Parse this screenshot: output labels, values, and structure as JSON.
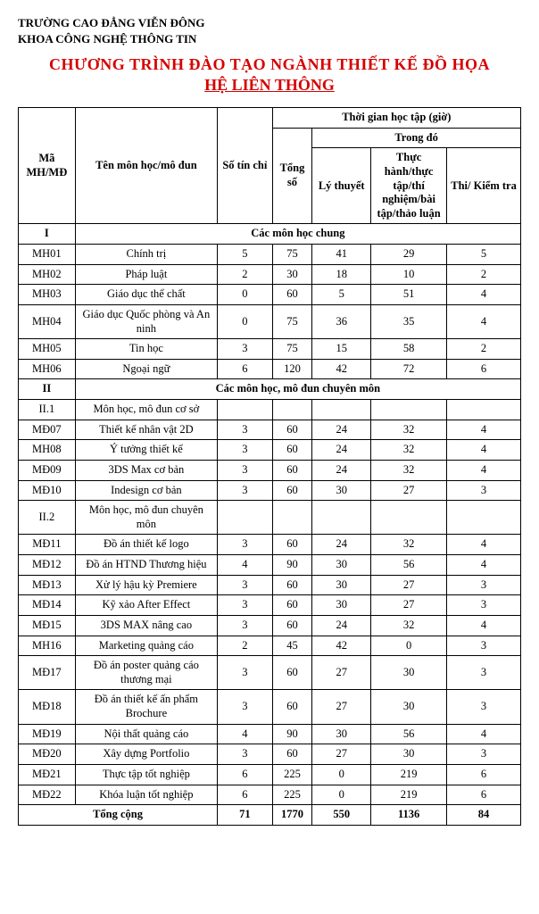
{
  "org1": "TRƯỜNG CAO ĐẲNG VIỄN ĐÔNG",
  "org2": "KHOA CÔNG NGHỆ THÔNG TIN",
  "title": "CHƯƠNG TRÌNH ĐÀO TẠO NGÀNH THIẾT KẾ ĐỒ HỌA",
  "subtitle": "HỆ LIÊN THÔNG",
  "headers": {
    "code": "Mã MH/MĐ",
    "name": "Tên môn học/mô đun",
    "credit": "Số tín chỉ",
    "time_group": "Thời gian học tập (giờ)",
    "total": "Tổng số",
    "in_which": "Trong đó",
    "theory": "Lý thuyết",
    "practice": "Thực hành/thực tập/thí nghiệm/bài tập/thảo luận",
    "exam": "Thi/ Kiểm tra"
  },
  "section1_code": "I",
  "section1_label": "Các môn học chung",
  "rows1": [
    {
      "code": "MH01",
      "name": "Chính trị",
      "credit": "5",
      "total": "75",
      "theory": "41",
      "practice": "29",
      "exam": "5"
    },
    {
      "code": "MH02",
      "name": "Pháp luật",
      "credit": "2",
      "total": "30",
      "theory": "18",
      "practice": "10",
      "exam": "2"
    },
    {
      "code": "MH03",
      "name": "Giáo dục thể chất",
      "credit": "0",
      "total": "60",
      "theory": "5",
      "practice": "51",
      "exam": "4"
    },
    {
      "code": "MH04",
      "name": "Giáo dục Quốc phòng và An ninh",
      "credit": "0",
      "total": "75",
      "theory": "36",
      "practice": "35",
      "exam": "4"
    },
    {
      "code": "MH05",
      "name": "Tin học",
      "credit": "3",
      "total": "75",
      "theory": "15",
      "practice": "58",
      "exam": "2"
    },
    {
      "code": "MH06",
      "name": "Ngoại ngữ",
      "credit": "6",
      "total": "120",
      "theory": "42",
      "practice": "72",
      "exam": "6"
    }
  ],
  "section2_code": "II",
  "section2_label": "Các môn học, mô đun chuyên môn",
  "sub21_code": "II.1",
  "sub21_name": "Môn học, mô đun cơ sở",
  "rows21": [
    {
      "code": "MĐ07",
      "name": "Thiết kế nhân vật 2D",
      "credit": "3",
      "total": "60",
      "theory": "24",
      "practice": "32",
      "exam": "4"
    },
    {
      "code": "MH08",
      "name": "Ý tưởng thiết kế",
      "credit": "3",
      "total": "60",
      "theory": "24",
      "practice": "32",
      "exam": "4"
    },
    {
      "code": "MĐ09",
      "name": "3DS Max cơ bản",
      "credit": "3",
      "total": "60",
      "theory": "24",
      "practice": "32",
      "exam": "4"
    },
    {
      "code": "MĐ10",
      "name": "Indesign cơ bản",
      "credit": "3",
      "total": "60",
      "theory": "30",
      "practice": "27",
      "exam": "3"
    }
  ],
  "sub22_code": "II.2",
  "sub22_name": "Môn học, mô đun chuyên môn",
  "rows22": [
    {
      "code": "MĐ11",
      "name": "Đồ án thiết kế logo",
      "credit": "3",
      "total": "60",
      "theory": "24",
      "practice": "32",
      "exam": "4"
    },
    {
      "code": "MĐ12",
      "name": "Đồ án HTND Thương hiệu",
      "credit": "4",
      "total": "90",
      "theory": "30",
      "practice": "56",
      "exam": "4"
    },
    {
      "code": "MĐ13",
      "name": "Xử lý hậu kỳ Premiere",
      "credit": "3",
      "total": "60",
      "theory": "30",
      "practice": "27",
      "exam": "3"
    },
    {
      "code": "MĐ14",
      "name": "Kỹ xảo After Effect",
      "credit": "3",
      "total": "60",
      "theory": "30",
      "practice": "27",
      "exam": "3"
    },
    {
      "code": "MĐ15",
      "name": "3DS MAX nâng cao",
      "credit": "3",
      "total": "60",
      "theory": "24",
      "practice": "32",
      "exam": "4"
    },
    {
      "code": "MH16",
      "name": "Marketing quảng cáo",
      "credit": "2",
      "total": "45",
      "theory": "42",
      "practice": "0",
      "exam": "3"
    },
    {
      "code": "MĐ17",
      "name": "Đồ án poster quảng cáo thương mại",
      "credit": "3",
      "total": "60",
      "theory": "27",
      "practice": "30",
      "exam": "3"
    },
    {
      "code": "MĐ18",
      "name": "Đồ án thiết kế ấn phẩm Brochure",
      "credit": "3",
      "total": "60",
      "theory": "27",
      "practice": "30",
      "exam": "3"
    },
    {
      "code": "MĐ19",
      "name": "Nội thất quảng cáo",
      "credit": "4",
      "total": "90",
      "theory": "30",
      "practice": "56",
      "exam": "4"
    },
    {
      "code": "MĐ20",
      "name": "Xây dựng Portfolio",
      "credit": "3",
      "total": "60",
      "theory": "27",
      "practice": "30",
      "exam": "3"
    },
    {
      "code": "MĐ21",
      "name": "Thực tập tốt nghiệp",
      "credit": "6",
      "total": "225",
      "theory": "0",
      "practice": "219",
      "exam": "6"
    },
    {
      "code": "MĐ22",
      "name": "Khóa luận tốt nghiệp",
      "credit": "6",
      "total": "225",
      "theory": "0",
      "practice": "219",
      "exam": "6"
    }
  ],
  "total_label": "Tổng cộng",
  "totals": {
    "credit": "71",
    "total": "1770",
    "theory": "550",
    "practice": "1136",
    "exam": "84"
  }
}
